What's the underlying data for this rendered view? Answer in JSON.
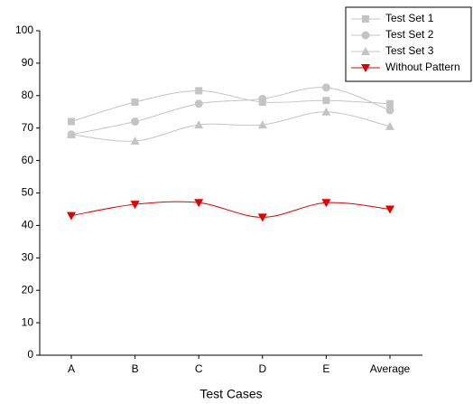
{
  "chart_data": {
    "type": "line",
    "x_label": "Test Cases",
    "categories": [
      "A",
      "B",
      "C",
      "D",
      "E",
      "Average"
    ],
    "series": [
      {
        "name": "Test Set 1",
        "color": "#c4c4c4",
        "marker": "square",
        "values": [
          72,
          78,
          81.5,
          78,
          78.5,
          77.5
        ]
      },
      {
        "name": "Test Set 2",
        "color": "#c4c4c4",
        "marker": "circle",
        "values": [
          68,
          72,
          77.5,
          79,
          82.5,
          75.5
        ]
      },
      {
        "name": "Test Set 3",
        "color": "#c4c4c4",
        "marker": "triangle",
        "values": [
          68,
          66,
          71,
          71,
          75,
          70.5
        ]
      },
      {
        "name": "Without  Pattern",
        "color": "#e00000",
        "marker": "triangle-down",
        "values": [
          43,
          46.5,
          47,
          42.5,
          47,
          45
        ]
      }
    ],
    "ylim": [
      0,
      100
    ],
    "yticks": [
      0,
      10,
      20,
      30,
      40,
      50,
      60,
      70,
      80,
      90,
      100
    ],
    "smooth": true,
    "legend": "top-right"
  }
}
